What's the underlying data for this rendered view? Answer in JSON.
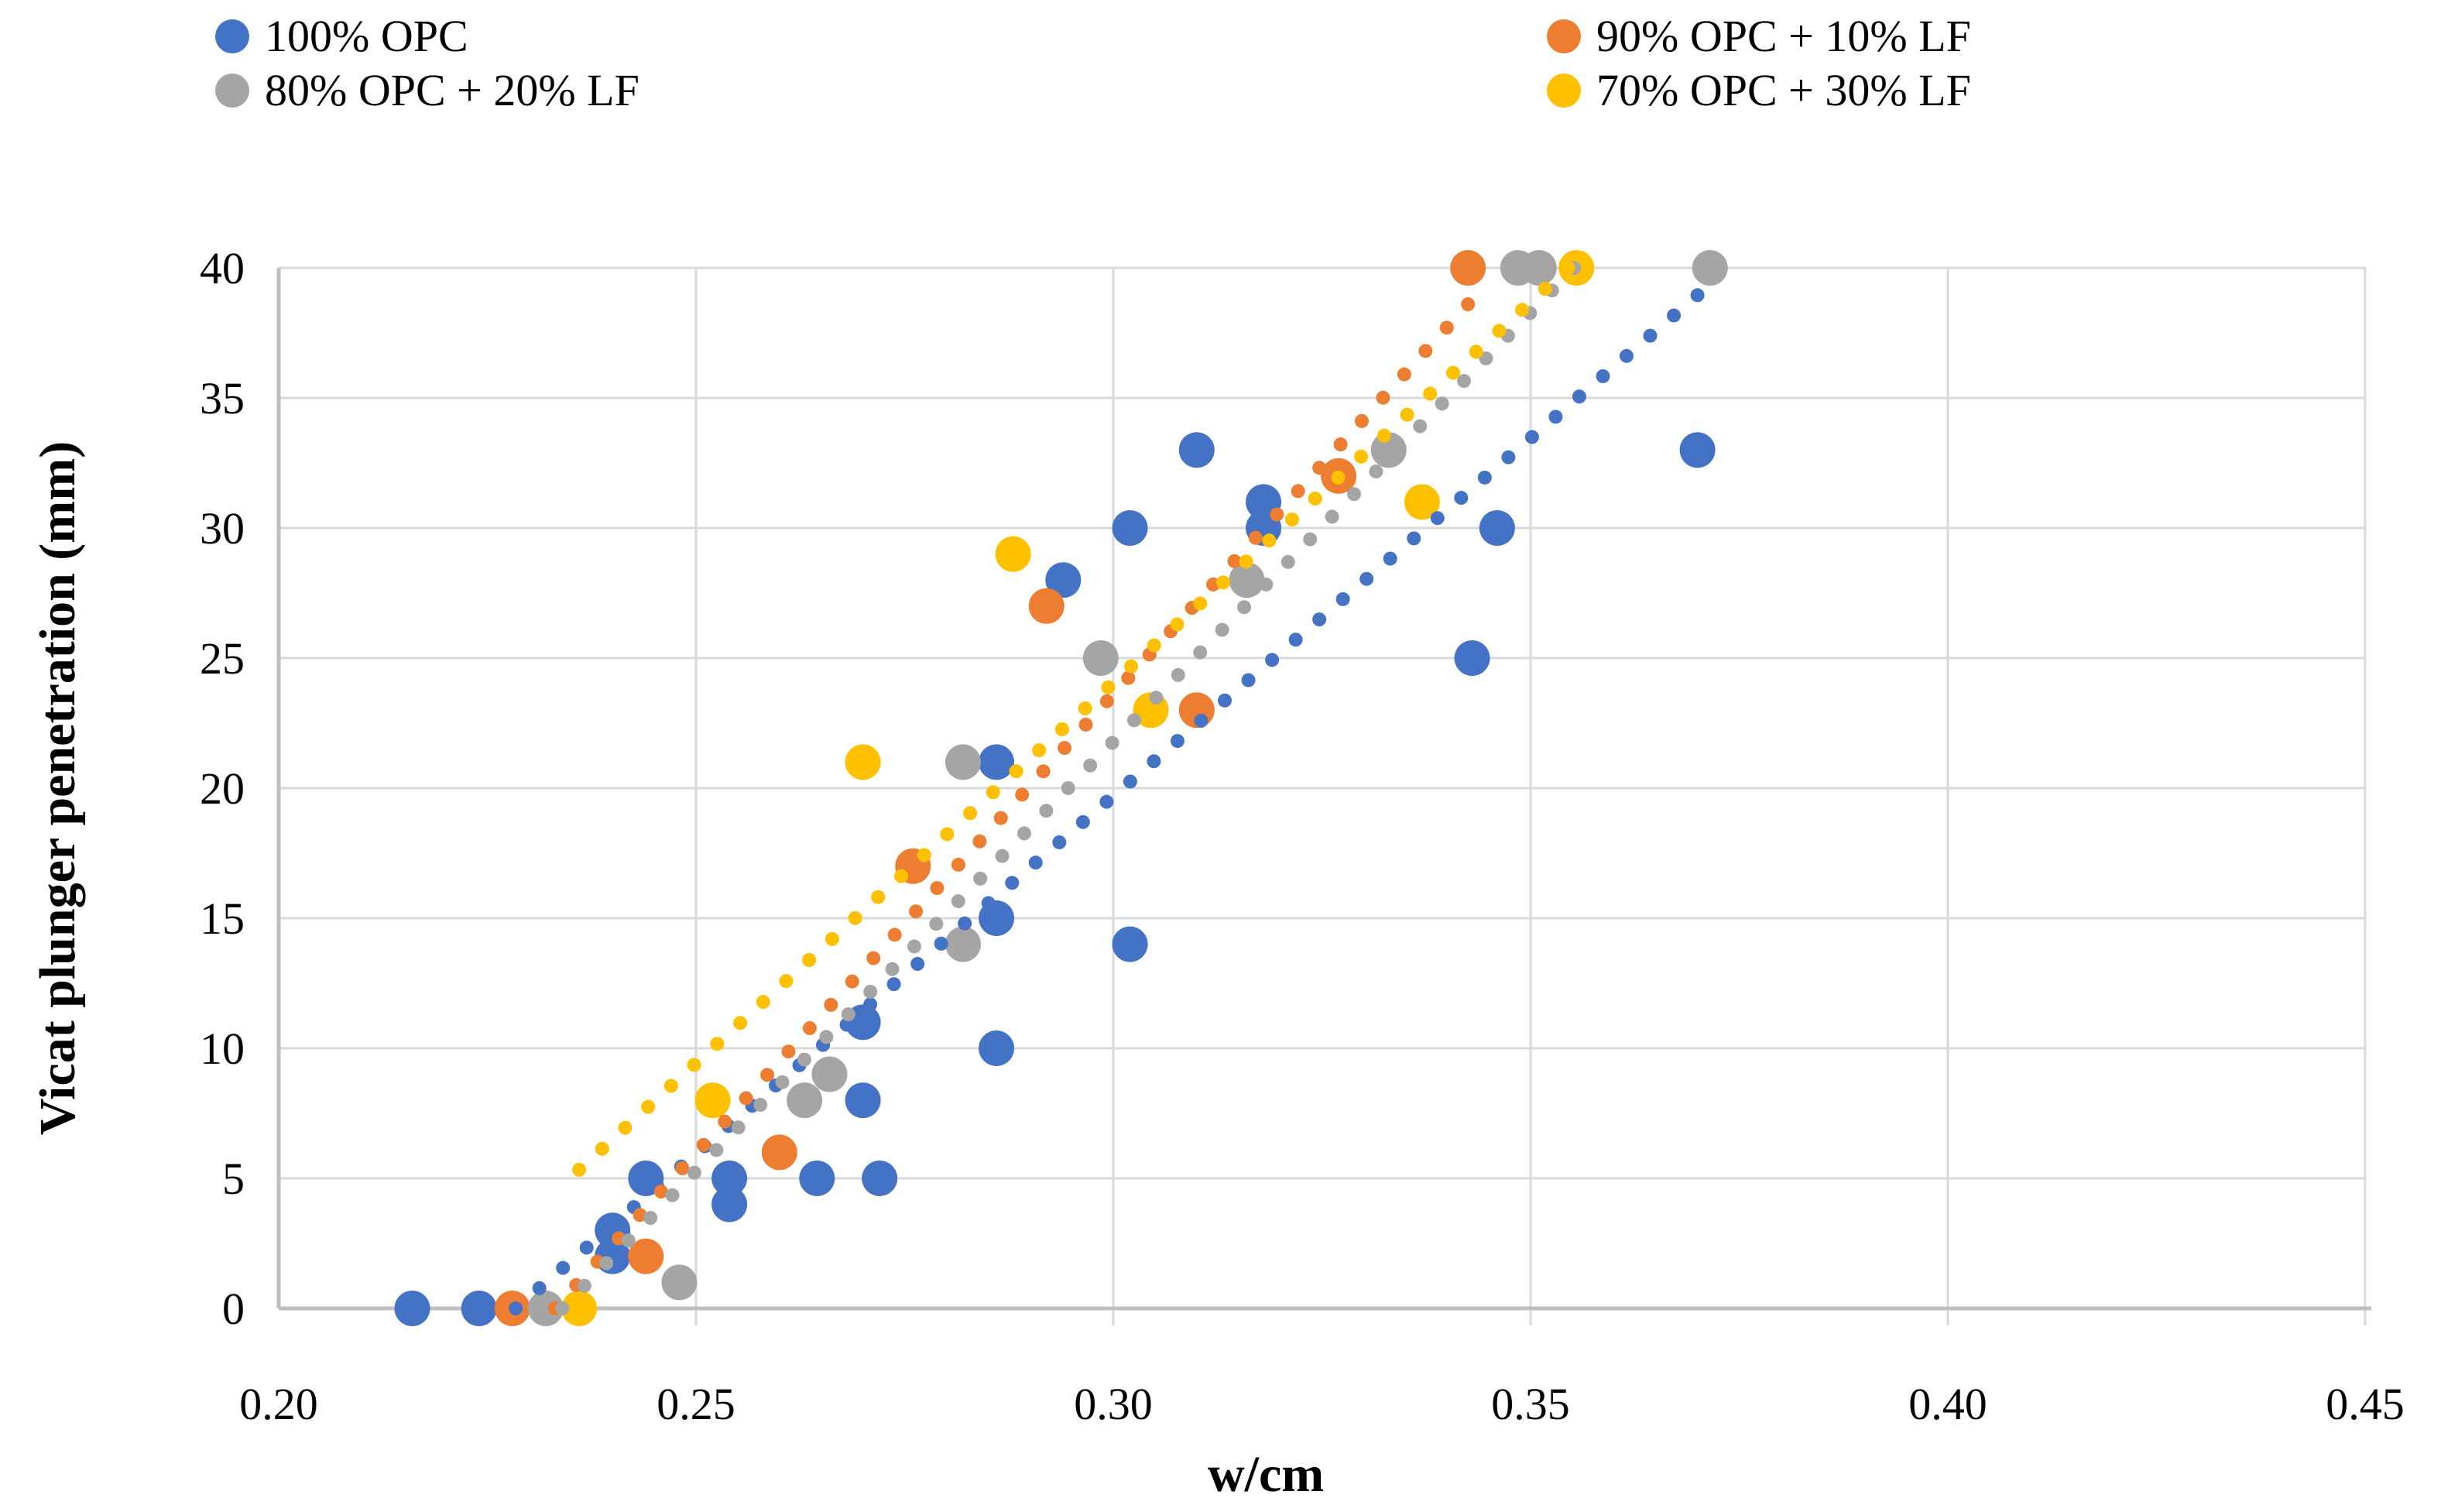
{
  "figure": {
    "background": "#ffffff"
  },
  "legend": {
    "items": [
      {
        "label": "100% OPC",
        "color": "#4472C4"
      },
      {
        "label": "90% OPC + 10% LF",
        "color": "#ED7D31"
      },
      {
        "label": "80% OPC + 20% LF",
        "color": "#A5A5A5"
      },
      {
        "label": "70% OPC + 30% LF",
        "color": "#FFC000"
      }
    ]
  },
  "axes": {
    "x": {
      "title": "w/cm",
      "min": 0.2,
      "max": 0.45,
      "step": 0.05,
      "tick_labels": [
        "0.20",
        "0.25",
        "0.30",
        "0.35",
        "0.40",
        "0.45"
      ]
    },
    "y": {
      "title": "Vicat plunger penetration (mm)",
      "min": 0,
      "max": 40,
      "step": 5,
      "tick_labels": [
        "0",
        "5",
        "10",
        "15",
        "20",
        "25",
        "30",
        "35",
        "40"
      ]
    }
  },
  "chart_data": {
    "type": "scatter",
    "title": "",
    "xlabel": "w/cm",
    "ylabel": "Vicat plunger penetration (mm)",
    "xlim": [
      0.2,
      0.45
    ],
    "ylim": [
      0,
      40
    ],
    "grid": true,
    "legend_position": "top",
    "series": [
      {
        "name": "100% OPC",
        "color": "#4472C4",
        "points": [
          [
            0.216,
            0
          ],
          [
            0.224,
            0
          ],
          [
            0.24,
            3
          ],
          [
            0.24,
            2
          ],
          [
            0.244,
            5
          ],
          [
            0.254,
            5
          ],
          [
            0.254,
            4
          ],
          [
            0.2645,
            5
          ],
          [
            0.27,
            8
          ],
          [
            0.27,
            11
          ],
          [
            0.272,
            5
          ],
          [
            0.286,
            10
          ],
          [
            0.286,
            15
          ],
          [
            0.286,
            21
          ],
          [
            0.294,
            28
          ],
          [
            0.302,
            14
          ],
          [
            0.302,
            30
          ],
          [
            0.31,
            33
          ],
          [
            0.318,
            31
          ],
          [
            0.318,
            30
          ],
          [
            0.343,
            25
          ],
          [
            0.346,
            30
          ],
          [
            0.37,
            33
          ]
        ],
        "trendline": {
          "style": "dotted",
          "from": [
            0.2284,
            0
          ],
          "to": [
            0.37,
            38.95
          ]
        }
      },
      {
        "name": "90% OPC + 10% LF",
        "color": "#ED7D31",
        "points": [
          [
            0.228,
            0
          ],
          [
            0.244,
            2
          ],
          [
            0.26,
            6
          ],
          [
            0.276,
            17
          ],
          [
            0.292,
            27
          ],
          [
            0.31,
            23
          ],
          [
            0.327,
            32
          ],
          [
            0.3425,
            40
          ]
        ],
        "trendline": {
          "style": "dotted",
          "from": [
            0.2331,
            0
          ],
          "to": [
            0.3425,
            38.6
          ]
        }
      },
      {
        "name": "80% OPC + 20% LF",
        "color": "#A5A5A5",
        "points": [
          [
            0.232,
            0
          ],
          [
            0.248,
            1
          ],
          [
            0.263,
            8
          ],
          [
            0.266,
            9
          ],
          [
            0.282,
            14
          ],
          [
            0.282,
            21
          ],
          [
            0.2985,
            25
          ],
          [
            0.316,
            28
          ],
          [
            0.333,
            33
          ],
          [
            0.3485,
            40
          ],
          [
            0.351,
            40
          ],
          [
            0.3715,
            40
          ]
        ],
        "trendline": {
          "style": "dotted",
          "from": [
            0.234,
            0
          ],
          "to": [
            0.3552,
            40
          ]
        }
      },
      {
        "name": "70% OPC + 30% LF",
        "color": "#FFC000",
        "points": [
          [
            0.236,
            0
          ],
          [
            0.252,
            8
          ],
          [
            0.27,
            21
          ],
          [
            0.288,
            29
          ],
          [
            0.3045,
            23
          ],
          [
            0.337,
            31
          ],
          [
            0.3555,
            40
          ]
        ],
        "trendline": {
          "style": "dotted",
          "from": [
            0.236,
            5.33
          ],
          "to": [
            0.3545,
            40
          ]
        }
      }
    ]
  },
  "style": {
    "gridline_color": "#D9D9D9",
    "axis_color": "#BFBFBF",
    "text_color": "#000000",
    "tick_font_size": 58,
    "marker_radius": 23,
    "trend_dot_radius": 9,
    "trend_dot_spacing": 40
  }
}
